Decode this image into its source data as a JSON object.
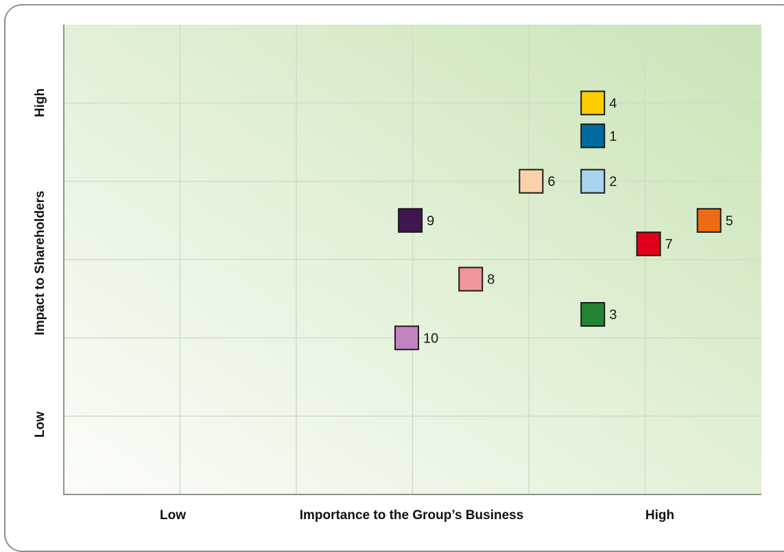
{
  "chart_data": {
    "type": "scatter",
    "x_axis": {
      "label": "Importance to the Group’s Business",
      "low_label": "Low",
      "high_label": "High",
      "range": [
        0,
        6
      ]
    },
    "y_axis": {
      "label": "Impact to Shareholders",
      "low_label": "Low",
      "high_label": "High",
      "range": [
        0,
        6
      ]
    },
    "grid": true,
    "background_gradient": {
      "from": "#fbfdf9",
      "to": "#c9e4b6"
    },
    "points": [
      {
        "label": "4",
        "x": 4.55,
        "y": 5.0,
        "color": "#ffcc00"
      },
      {
        "label": "1",
        "x": 4.55,
        "y": 4.58,
        "color": "#006b9f"
      },
      {
        "label": "2",
        "x": 4.55,
        "y": 4.0,
        "color": "#a7d3ee"
      },
      {
        "label": "6",
        "x": 4.02,
        "y": 4.0,
        "color": "#fbd1aa"
      },
      {
        "label": "9",
        "x": 2.98,
        "y": 3.5,
        "color": "#40164f"
      },
      {
        "label": "5",
        "x": 5.55,
        "y": 3.5,
        "color": "#ec6b14"
      },
      {
        "label": "7",
        "x": 5.03,
        "y": 3.2,
        "color": "#e1001a"
      },
      {
        "label": "8",
        "x": 3.5,
        "y": 2.75,
        "color": "#f0959a"
      },
      {
        "label": "3",
        "x": 4.55,
        "y": 2.3,
        "color": "#238434"
      },
      {
        "label": "10",
        "x": 2.95,
        "y": 2.0,
        "color": "#c383c0"
      }
    ]
  }
}
